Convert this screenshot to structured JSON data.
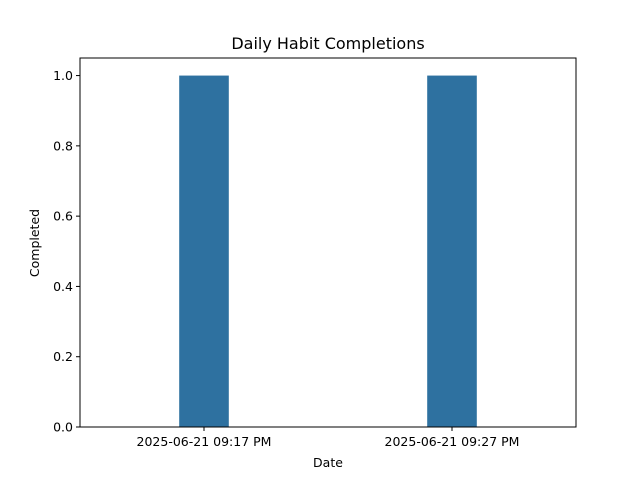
{
  "chart_data": {
    "type": "bar",
    "title": "Daily Habit Completions",
    "xlabel": "Date",
    "ylabel": "Completed",
    "categories": [
      "2025-06-21 09:17 PM",
      "2025-06-21 09:27 PM"
    ],
    "values": [
      1.0,
      1.0
    ],
    "ylim": [
      0,
      1.05
    ],
    "yticks": [
      "0.0",
      "0.2",
      "0.4",
      "0.6",
      "0.8",
      "1.0"
    ],
    "grid": false,
    "bar_color": "#2e71a0"
  }
}
